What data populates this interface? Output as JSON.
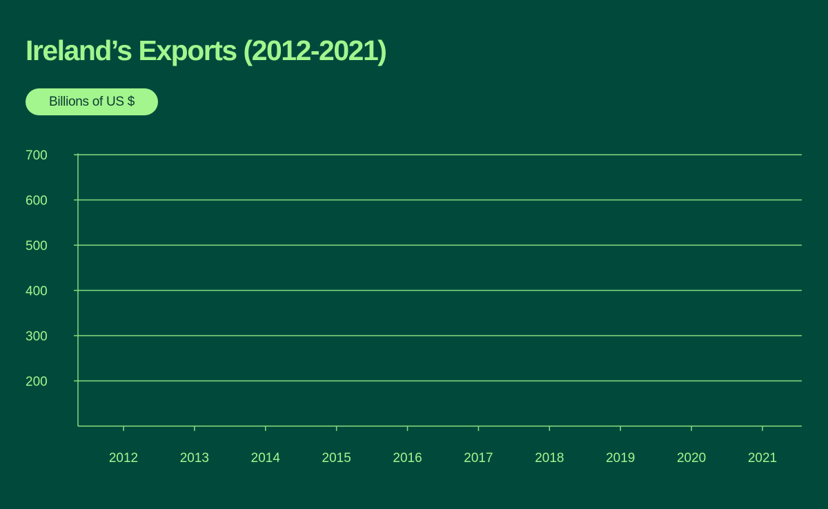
{
  "colors": {
    "background": "#014a3b",
    "accent": "#a3f58e",
    "axis": "#86dd7e"
  },
  "chart_data": {
    "type": "line",
    "title": "Ireland’s Exports (2012-2021)",
    "unit_label": "Billions of US $",
    "xlabel": "",
    "ylabel": "Billions of US $",
    "categories": [
      "2012",
      "2013",
      "2014",
      "2015",
      "2016",
      "2017",
      "2018",
      "2019",
      "2020",
      "2021"
    ],
    "yticks": [
      700,
      600,
      500,
      400,
      300,
      200
    ],
    "ylim": [
      100,
      700
    ],
    "grid": true,
    "series": []
  }
}
